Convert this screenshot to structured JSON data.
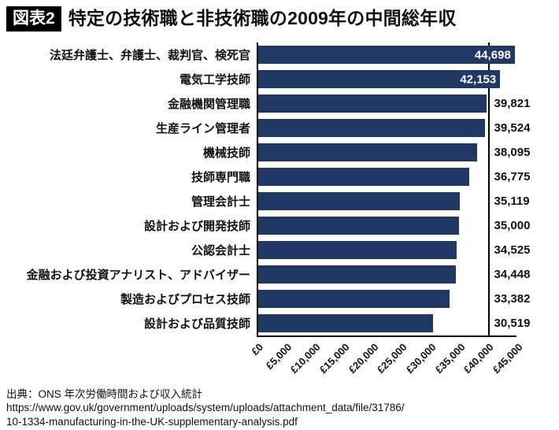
{
  "header": {
    "badge": "図表2",
    "title": "特定の技術職と非技術職の2009年の中間総年収"
  },
  "chart_data": {
    "type": "bar",
    "orientation": "horizontal",
    "title": "特定の技術職と非技術職の2009年の中間総年収",
    "categories": [
      "法廷弁護士、弁護士、裁判官、検死官",
      "電気工学技師",
      "金融機関管理職",
      "生産ライン管理者",
      "機械技師",
      "技師専門職",
      "管理会計士",
      "設計および開発技師",
      "公認会計士",
      "金融および投資アナリスト、アドバイザー",
      "製造およびプロセス技師",
      "設計および品質技師"
    ],
    "values": [
      44698,
      42153,
      39821,
      39524,
      38095,
      36775,
      35119,
      35000,
      34525,
      34448,
      33382,
      30519
    ],
    "value_labels": [
      "44,698",
      "42,153",
      "39,821",
      "39,524",
      "38,095",
      "36,775",
      "35,119",
      "35,000",
      "34,525",
      "34,448",
      "33,382",
      "30,519"
    ],
    "xlabel": "",
    "ylabel": "",
    "xlim": [
      0,
      45000
    ],
    "x_ticks": [
      "£0",
      "£5,000",
      "£10,000",
      "£15,000",
      "£20,000",
      "£25,000",
      "£30,000",
      "£35,000",
      "£40,000",
      "£45,000"
    ],
    "gridline_at": 40000,
    "bar_color": "#1f3864",
    "legend": "none",
    "currency": "GBP"
  },
  "source": {
    "line1": "出典：ONS 年次労働時間および収入統計",
    "line2": "https://www.gov.uk/government/uploads/system/uploads/attachment_data/file/31786/",
    "line3": "10-1334-manufacturing-in-the-UK-supplementary-analysis.pdf"
  }
}
